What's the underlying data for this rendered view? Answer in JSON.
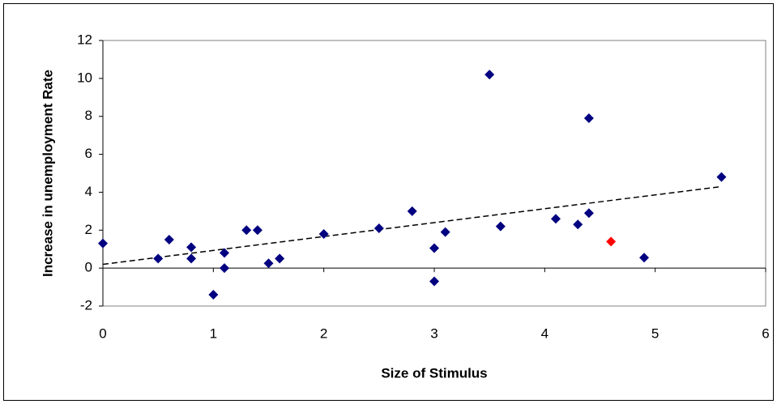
{
  "chart_data": {
    "type": "scatter",
    "x_label": "Size of Stimulus",
    "y_label": "Increase in unemployment Rate",
    "xlim": [
      0,
      6
    ],
    "xticks": [
      0,
      1,
      2,
      3,
      4,
      5,
      6
    ],
    "ylim": [
      -2,
      12
    ],
    "yticks": [
      -2,
      0,
      2,
      4,
      6,
      8,
      10,
      12
    ],
    "series": [
      {
        "color": "#000080",
        "x": [
          0,
          0.5,
          0.6,
          0.8,
          0.8,
          1,
          1.1,
          1.1,
          1.3,
          1.4,
          1.5,
          1.6,
          2,
          2.5,
          2.8,
          3,
          3,
          3.1,
          3.5,
          3.6,
          4.1,
          4.3,
          4.4,
          4.4,
          4.9,
          5.6
        ],
        "values": [
          1.3,
          0.5,
          1.5,
          1.1,
          0.5,
          -1.4,
          0.8,
          0.0,
          2.0,
          2.0,
          0.25,
          0.5,
          1.8,
          2.1,
          3.0,
          1.05,
          -0.7,
          1.9,
          10.2,
          2.2,
          2.6,
          2.3,
          2.9,
          7.9,
          0.55,
          4.8
        ]
      },
      {
        "color": "#ff0000",
        "x": [
          4.6
        ],
        "values": [
          1.4
        ]
      }
    ],
    "trendline": {
      "color": "#000000",
      "x": [
        0,
        5.6
      ],
      "values": [
        0.2,
        4.3
      ]
    }
  }
}
